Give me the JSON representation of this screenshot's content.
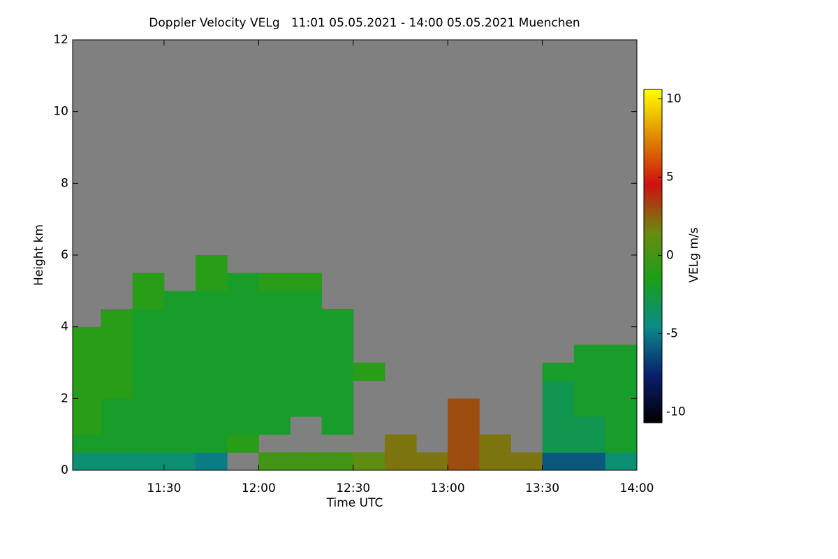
{
  "chart_data": {
    "type": "heatmap",
    "title": "Doppler Velocity VELg   11:01 05.05.2021 - 14:00 05.05.2021 Muenchen",
    "x_label": "Time UTC",
    "y_label": "Height km",
    "colorbar_label": "VELg m/s",
    "xlim": [
      661,
      840
    ],
    "ylim": [
      0,
      12
    ],
    "zlim": [
      -10.7,
      10.6
    ],
    "xticks": [
      {
        "value": 690,
        "label": "11:30"
      },
      {
        "value": 720,
        "label": "12:00"
      },
      {
        "value": 750,
        "label": "12:30"
      },
      {
        "value": 780,
        "label": "13:00"
      },
      {
        "value": 810,
        "label": "13:30"
      },
      {
        "value": 840,
        "label": "14:00"
      }
    ],
    "yticks": [
      0,
      2,
      4,
      6,
      8,
      10,
      12
    ],
    "zticks": [
      -10,
      -5,
      0,
      5,
      10
    ],
    "background": "#808080",
    "colormap": [
      "#000000",
      "#0a1f6e",
      "#0a8a8a",
      "#1aa01a",
      "#6a8a10",
      "#d01010",
      "#e08a00",
      "#ffff00"
    ],
    "x_bins": [
      660,
      670,
      680,
      690,
      700,
      710,
      720,
      730,
      740,
      750,
      760,
      770,
      780,
      790,
      800,
      810,
      820,
      830,
      840
    ],
    "y_bins": [
      0,
      0.5,
      1,
      1.5,
      2,
      2.5,
      3,
      3.5,
      4,
      4.5,
      5,
      5.5,
      6
    ],
    "values": [
      [
        -4,
        -4,
        -4,
        -4,
        -5,
        null,
        0,
        0,
        0,
        1,
        2,
        2,
        3,
        2,
        2,
        -6,
        -6,
        -4
      ],
      [
        -2,
        -2,
        -2,
        -2,
        -2,
        -1,
        null,
        null,
        null,
        null,
        2,
        null,
        3,
        2,
        null,
        -3,
        -3,
        -2
      ],
      [
        -1,
        -2,
        -2,
        -2,
        -2,
        -2,
        -2,
        null,
        -2,
        null,
        null,
        null,
        3,
        null,
        null,
        -3,
        -3,
        -2
      ],
      [
        -1,
        -2,
        -2,
        -2,
        -2,
        -2,
        -2,
        -2,
        -2,
        null,
        null,
        null,
        3,
        null,
        null,
        -3,
        -2,
        -2
      ],
      [
        -1,
        -1,
        -2,
        -2,
        -2,
        -2,
        -2,
        -2,
        -2,
        null,
        null,
        null,
        null,
        null,
        null,
        -3,
        -2,
        -2
      ],
      [
        -1,
        -1,
        -2,
        -2,
        -2,
        -2,
        -2,
        -2,
        -2,
        -1,
        null,
        null,
        null,
        null,
        null,
        -2,
        -2,
        -2
      ],
      [
        -1,
        -1,
        -2,
        -2,
        -2,
        -2,
        -2,
        -2,
        -2,
        null,
        null,
        null,
        null,
        null,
        null,
        null,
        -2,
        -2
      ],
      [
        -1,
        -1,
        -2,
        -2,
        -2,
        -2,
        -2,
        -2,
        -2,
        null,
        null,
        null,
        null,
        null,
        null,
        null,
        null,
        null
      ],
      [
        null,
        -1,
        -2,
        -2,
        -2,
        -2,
        -2,
        -2,
        -2,
        null,
        null,
        null,
        null,
        null,
        null,
        null,
        null,
        null
      ],
      [
        null,
        null,
        -1,
        -2,
        -2,
        -2,
        -2,
        -2,
        null,
        null,
        null,
        null,
        null,
        null,
        null,
        null,
        null,
        null
      ],
      [
        null,
        null,
        -1,
        null,
        -1,
        -2,
        -1,
        -1,
        null,
        null,
        null,
        null,
        null,
        null,
        null,
        null,
        null,
        null
      ],
      [
        null,
        null,
        null,
        null,
        -1,
        null,
        null,
        null,
        null,
        null,
        null,
        null,
        null,
        null,
        null,
        null,
        null,
        null
      ]
    ]
  }
}
